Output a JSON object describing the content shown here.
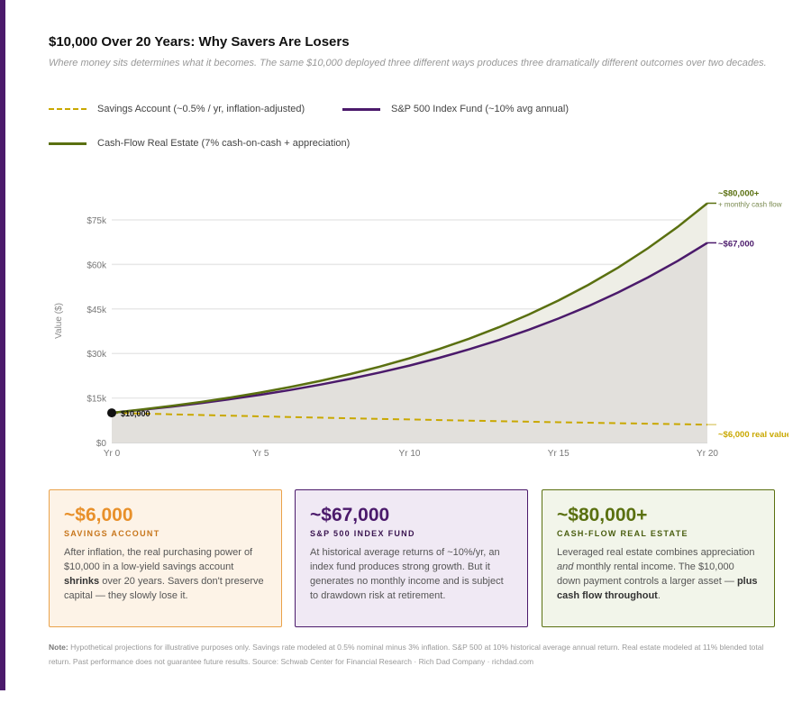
{
  "title": "$10,000 Over 20 Years: Why Savers Are Losers",
  "subtitle": "Where money sits determines what it becomes. The same $10,000 deployed three different ways produces three dramatically different outcomes over two decades.",
  "colors": {
    "savings": "#c9a800",
    "sp500": "#4b1a6b",
    "realestate": "#5a7010",
    "accent_bar": "#4b1a6b",
    "savings_card": "#e8902a"
  },
  "chart_data": {
    "type": "line",
    "xlabel": "",
    "ylabel": "Value ($)",
    "x": [
      0,
      1,
      2,
      3,
      4,
      5,
      6,
      7,
      8,
      9,
      10,
      11,
      12,
      13,
      14,
      15,
      16,
      17,
      18,
      19,
      20
    ],
    "x_ticks": [
      0,
      5,
      10,
      15,
      20
    ],
    "x_tick_labels": [
      "Yr 0",
      "Yr 5",
      "Yr 10",
      "Yr 15",
      "Yr 20"
    ],
    "ylim": [
      0,
      80000
    ],
    "y_ticks": [
      0,
      15000,
      30000,
      45000,
      60000,
      75000
    ],
    "y_tick_labels": [
      "$0",
      "$15k",
      "$30k",
      "$45k",
      "$60k",
      "$75k"
    ],
    "grid": true,
    "legend_position": "top",
    "series": [
      {
        "name": "Savings Account (~0.5% / yr, inflation-adjusted)",
        "key": "savings",
        "style": "dashed",
        "values": [
          10000,
          9750,
          9506,
          9269,
          9037,
          8811,
          8591,
          8376,
          8167,
          7963,
          7763,
          7569,
          7380,
          7196,
          7016,
          6840,
          6669,
          6503,
          6340,
          6182,
          6027
        ]
      },
      {
        "name": "S&P 500 Index Fund (~10% avg annual)",
        "key": "sp500",
        "style": "solid",
        "values": [
          10000,
          11000,
          12100,
          13310,
          14641,
          16105,
          17716,
          19487,
          21436,
          23579,
          25937,
          28531,
          31384,
          34523,
          37975,
          41772,
          45950,
          50545,
          55599,
          61159,
          67275
        ]
      },
      {
        "name": "Cash-Flow Real Estate (7% cash-on-cash + appreciation)",
        "key": "realestate",
        "style": "solid",
        "values": [
          10000,
          11100,
          12321,
          13676,
          15181,
          16851,
          18704,
          20762,
          23045,
          25580,
          28394,
          31518,
          34985,
          38833,
          43104,
          47846,
          53109,
          58951,
          65436,
          72633,
          80623
        ]
      }
    ],
    "annotations": {
      "start": "$10,000",
      "realestate_end": "~$80,000+",
      "realestate_end_sub": "+ monthly cash flow",
      "sp500_end": "~$67,000",
      "savings_end": "~$6,000 real value"
    }
  },
  "cards": [
    {
      "value": "~$6,000",
      "label": "SAVINGS ACCOUNT",
      "pre": "After inflation, the real purchasing power of $10,000 in a low-yield savings account ",
      "bold": "shrinks",
      "post": " over 20 years. Savers don't preserve capital — they slowly lose it."
    },
    {
      "value": "~$67,000",
      "label": "S&P 500 INDEX FUND",
      "text": "At historical average returns of ~10%/yr, an index fund produces strong growth. But it generates no monthly income and is subject to drawdown risk at retirement."
    },
    {
      "value": "~$80,000+",
      "label": "CASH-FLOW REAL ESTATE",
      "pre": "Leveraged real estate combines appreciation ",
      "em": "and",
      "mid": " monthly rental income. The $10,000 down payment controls a larger asset — ",
      "bold": "plus cash flow throughout",
      "post": "."
    }
  ],
  "note": {
    "label": "Note:",
    "text": " Hypothetical projections for illustrative purposes only. Savings rate modeled at 0.5% nominal minus 3% inflation. S&P 500 at 10% historical average annual return. Real estate modeled at 11% blended total return. Past performance does not guarantee future results. Source: Schwab Center for Financial Research · Rich Dad Company · richdad.com"
  }
}
